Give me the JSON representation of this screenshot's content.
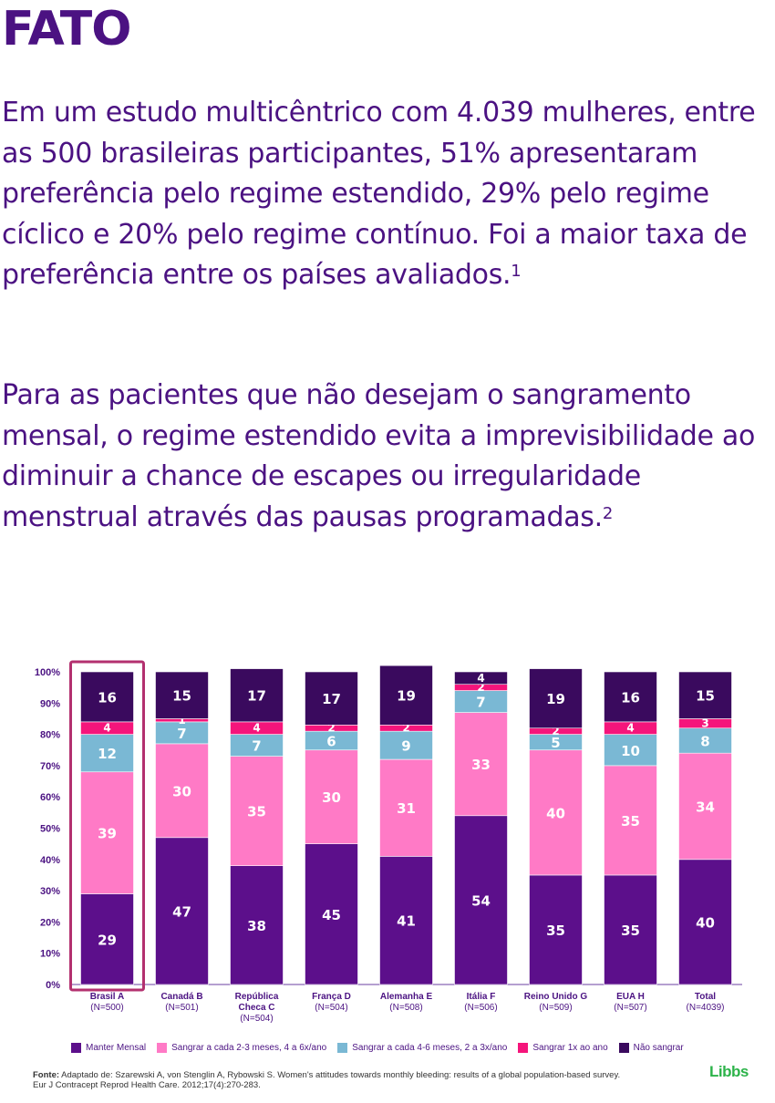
{
  "header": {
    "title": "FATO"
  },
  "paragraphs": {
    "p1": "Em um estudo multicêntrico com 4.039 mulheres, entre as 500 brasileiras participantes, 51% apresentaram preferência pelo regime estendido, 29% pelo regime cíclico e 20% pelo regime contínuo. Foi a maior taxa de preferência entre os países avaliados.",
    "p1_ref": "1",
    "p2": "Para as pacientes que não desejam o sangramento mensal, o regime estendido evita a imprevisibilidade ao diminuir a chance de escapes ou irregularidade menstrual através das pausas programadas.",
    "p2_ref": "2"
  },
  "chart_data": {
    "type": "bar",
    "stacked": true,
    "ylim": [
      0,
      100
    ],
    "yticks": [
      "0%",
      "10%",
      "20%",
      "30%",
      "40%",
      "50%",
      "60%",
      "70%",
      "80%",
      "90%",
      "100%"
    ],
    "categories": [
      {
        "name": "Brasil A",
        "n": "(N=500)",
        "highlight": true
      },
      {
        "name": "Canadá B",
        "n": "(N=501)"
      },
      {
        "name": "República Checa C",
        "n": "(N=504)"
      },
      {
        "name": "França D",
        "n": "(N=504)"
      },
      {
        "name": "Alemanha E",
        "n": "(N=508)"
      },
      {
        "name": "Itália F",
        "n": "(N=506)"
      },
      {
        "name": "Reino Unido G",
        "n": "(N=509)"
      },
      {
        "name": "EUA H",
        "n": "(N=507)"
      },
      {
        "name": "Total",
        "n": "(N=4039)"
      }
    ],
    "series": [
      {
        "name": "Manter Mensal",
        "color": "#5c0f8b",
        "values": [
          29,
          47,
          38,
          45,
          41,
          54,
          35,
          35,
          40
        ]
      },
      {
        "name": "Sangrar a cada 2-3 meses, 4 a 6x/ano",
        "color": "#ff7ac6",
        "values": [
          39,
          30,
          35,
          30,
          31,
          33,
          40,
          35,
          34
        ]
      },
      {
        "name": "Sangrar a cada 4-6 meses, 2 a 3x/ano",
        "color": "#7ab8d4",
        "values": [
          12,
          7,
          7,
          6,
          9,
          7,
          5,
          10,
          8
        ]
      },
      {
        "name": "Sangrar 1x ao ano",
        "color": "#f5157b",
        "values": [
          4,
          1,
          4,
          2,
          2,
          2,
          2,
          4,
          3
        ]
      },
      {
        "name": "Não sangrar",
        "color": "#3a0a5e",
        "values": [
          16,
          15,
          17,
          17,
          19,
          4,
          19,
          16,
          15
        ]
      }
    ]
  },
  "footer": {
    "source_label": "Fonte:",
    "source_text": "Adaptado de: Szarewski A, von Stenglin A, Rybowski S. Women's attitudes towards monthly bleeding: results of a global population-based survey. Eur J Contracept Reprod Health Care. 2012;17(4):270-283.",
    "logo": "Libbs"
  }
}
